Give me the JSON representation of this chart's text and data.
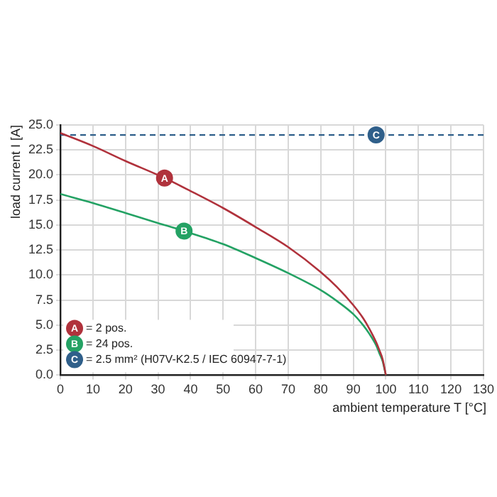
{
  "chart_data": {
    "type": "line",
    "xlabel": "ambient temperature T [°C]",
    "ylabel": "load current I [A]",
    "series": [
      {
        "name": "= 2 pos.",
        "color": "#b0323c",
        "x": [
          0,
          10,
          20,
          32,
          40,
          50,
          60,
          70,
          80,
          85,
          90,
          93,
          95,
          97,
          98,
          99,
          100
        ],
        "values": [
          24.2,
          22.9,
          21.4,
          19.7,
          18.4,
          16.7,
          14.8,
          12.8,
          10.3,
          8.8,
          7.0,
          5.7,
          4.6,
          3.3,
          2.5,
          1.6,
          0
        ]
      },
      {
        "name": "= 24 pos.",
        "color": "#24a264",
        "x": [
          0,
          10,
          20,
          30,
          38,
          50,
          60,
          70,
          80,
          85,
          90,
          93,
          95,
          97,
          98,
          99,
          100
        ],
        "values": [
          18.1,
          17.2,
          16.2,
          15.2,
          14.4,
          13.1,
          11.7,
          10.2,
          8.5,
          7.4,
          6.1,
          5.0,
          4.1,
          3.0,
          2.2,
          1.4,
          0
        ]
      }
    ],
    "ref_lines": [
      {
        "axis": "y",
        "value": 24,
        "color": "#2f5f8a",
        "line_style": "dashed"
      }
    ],
    "annotations": [
      {
        "text": "A",
        "x": 32,
        "y": 19.7
      },
      {
        "text": "B",
        "x": 38,
        "y": 14.4
      },
      {
        "text": "C",
        "x": 97,
        "y": 24
      },
      "= 2.5 mm² (H07V-K2.5 / IEC 60947-7-1)"
    ],
    "xlim": [
      0,
      130
    ],
    "xticks": [
      0,
      10,
      20,
      30,
      40,
      50,
      60,
      70,
      80,
      90,
      100,
      110,
      120,
      130
    ],
    "ylim": [
      0,
      25
    ],
    "yticks": [
      {
        "value": 0,
        "label": "0.0"
      },
      {
        "value": 2.5,
        "label": "2.5"
      },
      {
        "value": 5,
        "label": "5.0"
      },
      {
        "value": 7.5,
        "label": "7.5"
      },
      {
        "value": 10,
        "label": "10.0"
      },
      {
        "value": 12.5,
        "label": "12.5"
      },
      {
        "value": 15,
        "label": "15.0"
      },
      {
        "value": 17.5,
        "label": "17.5"
      },
      {
        "value": 20,
        "label": "20.0"
      },
      {
        "value": 22.5,
        "label": "22.5"
      },
      {
        "value": 25,
        "label": "25.0"
      }
    ],
    "grid": true,
    "legend": "bottom left",
    "marker": "none",
    "line_style": "solid"
  }
}
